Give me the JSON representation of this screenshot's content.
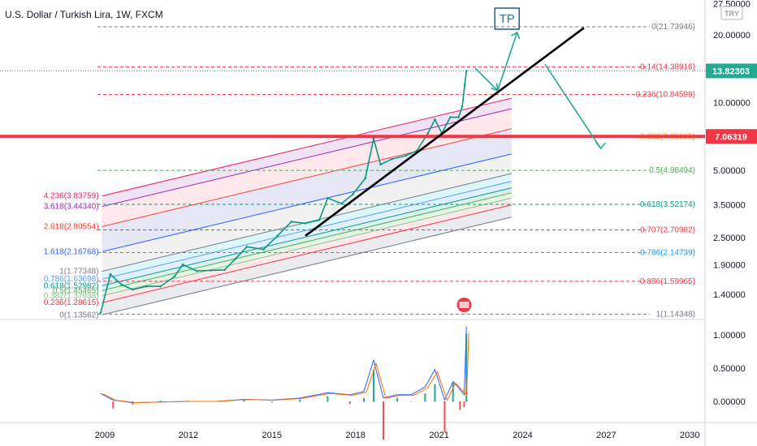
{
  "chart_data": {
    "type": "line",
    "title": "U.S. Dollar / Turkish Lira, 1W, FXCM",
    "currency": "TRY",
    "x_ticks": [
      "2009",
      "2012",
      "2015",
      "2018",
      "2021",
      "2024",
      "2027",
      "2030"
    ],
    "y_ticks": [
      "27.50000",
      "20.00000",
      "10.00000",
      "5.00000",
      "3.50000",
      "2.50000",
      "1.90000",
      "1.40000"
    ],
    "osc_ticks": [
      "1.00000",
      "0.50000",
      "0.00000"
    ],
    "last_price": "13.82303",
    "marked_price": "7.06319",
    "tp_label": "TP",
    "price_series": [
      {
        "x": 2008.85,
        "y": 1.16
      },
      {
        "x": 2009.2,
        "y": 1.72
      },
      {
        "x": 2009.6,
        "y": 1.55
      },
      {
        "x": 2010.0,
        "y": 1.47
      },
      {
        "x": 2010.5,
        "y": 1.52
      },
      {
        "x": 2011.0,
        "y": 1.52
      },
      {
        "x": 2011.5,
        "y": 1.68
      },
      {
        "x": 2011.8,
        "y": 1.9
      },
      {
        "x": 2012.3,
        "y": 1.78
      },
      {
        "x": 2012.8,
        "y": 1.79
      },
      {
        "x": 2013.3,
        "y": 1.8
      },
      {
        "x": 2013.7,
        "y": 2.02
      },
      {
        "x": 2014.1,
        "y": 2.28
      },
      {
        "x": 2014.7,
        "y": 2.22
      },
      {
        "x": 2015.2,
        "y": 2.55
      },
      {
        "x": 2015.7,
        "y": 2.95
      },
      {
        "x": 2016.2,
        "y": 2.9
      },
      {
        "x": 2016.7,
        "y": 3.0
      },
      {
        "x": 2017.0,
        "y": 3.75
      },
      {
        "x": 2017.5,
        "y": 3.55
      },
      {
        "x": 2017.9,
        "y": 3.9
      },
      {
        "x": 2018.35,
        "y": 4.6
      },
      {
        "x": 2018.65,
        "y": 6.9
      },
      {
        "x": 2018.9,
        "y": 5.3
      },
      {
        "x": 2019.3,
        "y": 5.6
      },
      {
        "x": 2019.8,
        "y": 5.8
      },
      {
        "x": 2020.2,
        "y": 6.1
      },
      {
        "x": 2020.6,
        "y": 7.3
      },
      {
        "x": 2020.85,
        "y": 8.4
      },
      {
        "x": 2021.1,
        "y": 7.3
      },
      {
        "x": 2021.4,
        "y": 8.6
      },
      {
        "x": 2021.7,
        "y": 8.6
      },
      {
        "x": 2021.83,
        "y": 9.6
      },
      {
        "x": 2021.92,
        "y": 12.0
      },
      {
        "x": 2021.98,
        "y": 13.82
      }
    ],
    "oscillator": [
      {
        "x": 2008.85,
        "y": 0.12
      },
      {
        "x": 2009.3,
        "y": 0.02
      },
      {
        "x": 2010,
        "y": -0.02
      },
      {
        "x": 2011,
        "y": -0.01
      },
      {
        "x": 2012,
        "y": 0.0
      },
      {
        "x": 2013,
        "y": 0.0
      },
      {
        "x": 2014,
        "y": 0.03
      },
      {
        "x": 2015,
        "y": 0.02
      },
      {
        "x": 2016,
        "y": 0.05
      },
      {
        "x": 2017,
        "y": 0.13
      },
      {
        "x": 2017.8,
        "y": 0.1
      },
      {
        "x": 2018.3,
        "y": 0.15
      },
      {
        "x": 2018.65,
        "y": 0.62
      },
      {
        "x": 2019.0,
        "y": 0.05
      },
      {
        "x": 2019.5,
        "y": 0.1
      },
      {
        "x": 2020.0,
        "y": 0.1
      },
      {
        "x": 2020.5,
        "y": 0.22
      },
      {
        "x": 2020.85,
        "y": 0.48
      },
      {
        "x": 2021.2,
        "y": 0.02
      },
      {
        "x": 2021.5,
        "y": 0.3
      },
      {
        "x": 2021.75,
        "y": 0.18
      },
      {
        "x": 2021.9,
        "y": 0.1
      },
      {
        "x": 2021.98,
        "y": 1.12
      }
    ],
    "fib_channel_left_labels": [
      {
        "text": "4.236(3.83759)",
        "color": "#e91e63"
      },
      {
        "text": "3.618(3.44340)",
        "color": "#9c27b0"
      },
      {
        "text": "2.618(2.80554)",
        "color": "#f44336"
      },
      {
        "text": "1.618(2.16768)",
        "color": "#2962ff"
      },
      {
        "text": "1(1.77348)",
        "color": "#787b86"
      },
      {
        "text": "0.786(1.63698)",
        "color": "#5b9cf6"
      },
      {
        "text": "0.618(1.52982)",
        "color": "#089981"
      },
      {
        "text": "0.5(1.45465)",
        "color": "#4caf50"
      },
      {
        "text": "0.382(1.37938)",
        "color": "#81c784"
      },
      {
        "text": "0.236(1.28615)",
        "color": "#f23645"
      },
      {
        "text": "0(1.13562)",
        "color": "#787b86"
      }
    ],
    "fib_retracement_right_labels": [
      {
        "text": "0(21.73946)",
        "color": "#787b86"
      },
      {
        "text": "0.14(14.38916)",
        "color": "#f23645"
      },
      {
        "text": "0.236(10.84599)",
        "color": "#f23645"
      },
      {
        "text": "0.382(7.05695)",
        "color": "#ff9800"
      },
      {
        "text": "0.5(4.98494)",
        "color": "#4caf50"
      },
      {
        "text": "0.618(3.52174)",
        "color": "#089981"
      },
      {
        "text": "0.707(2.70982)",
        "color": "#f23645"
      },
      {
        "text": "0.786(2.14739)",
        "color": "#2196f3"
      },
      {
        "text": "0.886(1.59965)",
        "color": "#f23645"
      },
      {
        "text": "1(1.14348)",
        "color": "#787b86"
      }
    ],
    "colors": {
      "price": "#089981",
      "horizontal_line": "#f23645",
      "trendline": "#000000",
      "arrows": "#22ab94",
      "last_tag": "#22ab94",
      "marked_tag": "#f23645"
    }
  }
}
